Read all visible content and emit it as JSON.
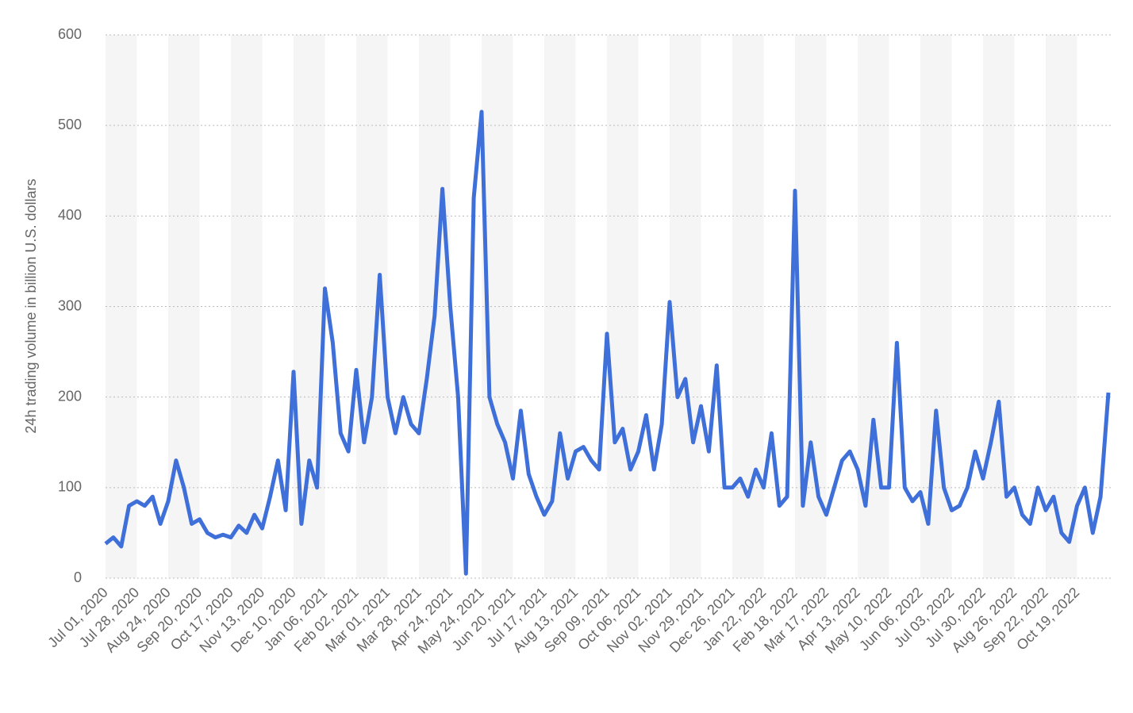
{
  "chart_data": {
    "type": "line",
    "y_label": "24h trading volume in billion U.S. dollars",
    "ylim": [
      0,
      600
    ],
    "yticks": [
      0,
      100,
      200,
      300,
      400,
      500,
      600
    ],
    "grid": true,
    "categories": [
      "Jul 01, 2020",
      null,
      null,
      null,
      "Jul 28, 2020",
      null,
      null,
      null,
      "Aug 24, 2020",
      null,
      null,
      null,
      "Sep 20, 2020",
      null,
      null,
      null,
      "Oct 17, 2020",
      null,
      null,
      null,
      "Nov 13, 2020",
      null,
      null,
      null,
      "Dec 10, 2020",
      null,
      null,
      null,
      "Jan 06, 2021",
      null,
      null,
      null,
      "Feb 02, 2021",
      null,
      null,
      null,
      "Mar 01, 2021",
      null,
      null,
      null,
      "Mar 28, 2021",
      null,
      null,
      null,
      "Apr 24, 2021",
      null,
      null,
      null,
      "May 24, 2021",
      null,
      null,
      null,
      "Jun 20, 2021",
      null,
      null,
      null,
      "Jul 17, 2021",
      null,
      null,
      null,
      "Aug 13, 2021",
      null,
      null,
      null,
      "Sep 09, 2021",
      null,
      null,
      null,
      "Oct 06, 2021",
      null,
      null,
      null,
      "Nov 02, 2021",
      null,
      null,
      null,
      "Nov 29, 2021",
      null,
      null,
      null,
      "Dec 26, 2021",
      null,
      null,
      null,
      "Jan 22, 2022",
      null,
      null,
      null,
      "Feb 18, 2022",
      null,
      null,
      null,
      "Mar 17, 2022",
      null,
      null,
      null,
      "Apr 13, 2022",
      null,
      null,
      null,
      "May 10, 2022",
      null,
      null,
      null,
      "Jun 06, 2022",
      null,
      null,
      null,
      "Jul 03, 2022",
      null,
      null,
      null,
      "Jul 30, 2022",
      null,
      null,
      null,
      "Aug 26, 2022",
      null,
      null,
      null,
      "Sep 22, 2022",
      null,
      null,
      null,
      "Oct 19, 2022",
      null,
      null,
      null,
      null
    ],
    "series": [
      {
        "color": "#3f6fd8",
        "values": [
          38,
          45,
          35,
          80,
          85,
          80,
          90,
          60,
          85,
          130,
          100,
          60,
          65,
          50,
          45,
          48,
          45,
          58,
          50,
          70,
          55,
          90,
          130,
          75,
          228,
          60,
          130,
          100,
          320,
          260,
          160,
          140,
          230,
          150,
          200,
          335,
          200,
          160,
          200,
          170,
          160,
          220,
          290,
          430,
          300,
          200,
          5,
          420,
          515,
          200,
          170,
          150,
          110,
          185,
          115,
          90,
          70,
          85,
          160,
          110,
          140,
          145,
          130,
          120,
          270,
          150,
          165,
          120,
          140,
          180,
          120,
          170,
          305,
          200,
          220,
          150,
          190,
          140,
          235,
          100,
          100,
          110,
          90,
          120,
          100,
          160,
          80,
          90,
          428,
          80,
          150,
          90,
          70,
          100,
          130,
          140,
          120,
          80,
          175,
          100,
          100,
          260,
          100,
          85,
          95,
          60,
          185,
          100,
          75,
          80,
          100,
          140,
          110,
          150,
          195,
          90,
          100,
          70,
          60,
          100,
          75,
          90,
          50,
          40,
          80,
          100,
          50,
          90,
          205
        ]
      }
    ]
  }
}
